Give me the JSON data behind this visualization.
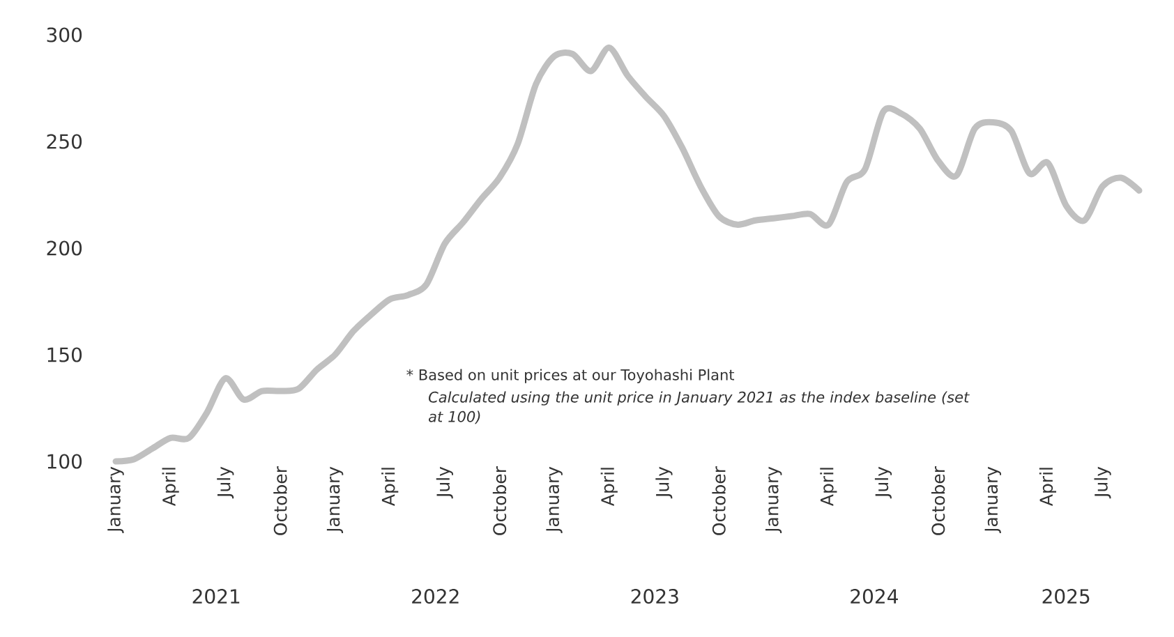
{
  "chart_data": {
    "type": "line",
    "categories": [
      "January",
      null,
      null,
      "April",
      null,
      null,
      "July",
      null,
      null,
      "October",
      null,
      null,
      "January",
      null,
      null,
      "April",
      null,
      null,
      "July",
      null,
      null,
      "October",
      null,
      null,
      "January",
      null,
      null,
      "April",
      null,
      null,
      "July",
      null,
      null,
      "October",
      null,
      null,
      "January",
      null,
      null,
      "April",
      null,
      null,
      "July",
      null,
      null,
      "October",
      null,
      null,
      "January",
      null,
      null,
      "April",
      null,
      null,
      "July",
      null,
      null
    ],
    "series": [
      {
        "color": "#c0c0c0",
        "values": [
          100,
          101,
          106,
          111,
          111,
          123,
          139,
          129,
          133,
          133,
          134,
          143,
          150,
          161,
          169,
          176,
          178,
          183,
          202,
          212,
          223,
          233,
          249,
          277,
          290,
          291,
          283,
          294,
          281,
          271,
          262,
          247,
          229,
          215,
          211,
          213,
          214,
          215,
          216,
          211,
          231,
          237,
          264,
          263,
          256,
          241,
          234,
          256,
          259,
          255,
          235,
          240,
          220,
          213,
          229,
          233,
          227
        ]
      }
    ],
    "ylim": [
      100,
      300
    ],
    "yticks": [
      100,
      150,
      200,
      250,
      300
    ],
    "annotations": [
      "2021",
      "2022",
      "2023",
      "2024",
      "2025",
      "* Based on unit prices at our Toyohashi Plant",
      "Calculated using the unit price in January 2021 as the index baseline (set at 100)"
    ]
  }
}
